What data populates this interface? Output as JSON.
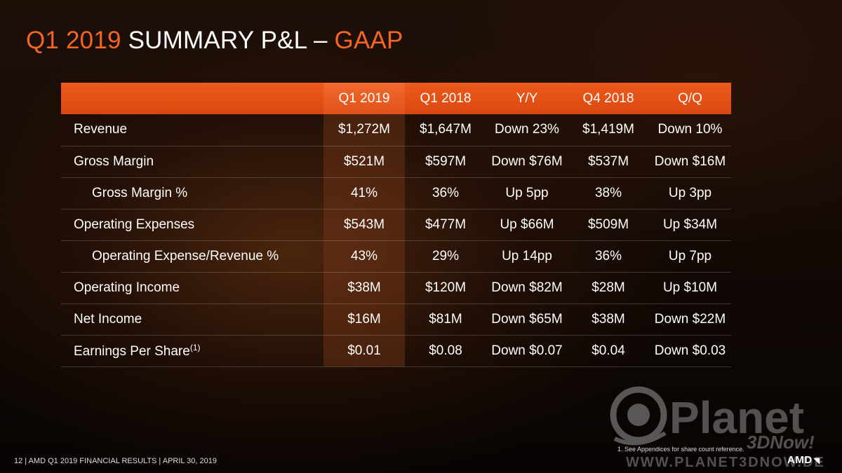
{
  "title": {
    "quarter": "Q1 2019",
    "main": " SUMMARY P&L – ",
    "suffix": "GAAP"
  },
  "table": {
    "headers": [
      "",
      "Q1 2019",
      "Q1 2018",
      "Y/Y",
      "Q4 2018",
      "Q/Q"
    ],
    "rows": [
      {
        "label": "Revenue",
        "values": [
          "$1,272M",
          "$1,647M",
          "Down 23%",
          "$1,419M",
          "Down 10%"
        ]
      },
      {
        "label": "Gross Margin",
        "values": [
          "$521M",
          "$597M",
          "Down $76M",
          "$537M",
          "Down $16M"
        ]
      },
      {
        "label": "Gross Margin %",
        "values": [
          "41%",
          "36%",
          "Up 5pp",
          "38%",
          "Up 3pp"
        ]
      },
      {
        "label": "Operating Expenses",
        "values": [
          "$543M",
          "$477M",
          "Up $66M",
          "$509M",
          "Up $34M"
        ]
      },
      {
        "label": "Operating Expense/Revenue %",
        "values": [
          "43%",
          "29%",
          "Up 14pp",
          "36%",
          "Up 7pp"
        ]
      },
      {
        "label": "Operating Income",
        "values": [
          "$38M",
          "$120M",
          "Down $82M",
          "$28M",
          "Up $10M"
        ]
      },
      {
        "label": "Net Income",
        "values": [
          "$16M",
          "$81M",
          "Down $65M",
          "$38M",
          "Down $22M"
        ]
      },
      {
        "label": "Earnings Per Share",
        "label_sup": "(1)",
        "values": [
          "$0.01",
          "$0.08",
          "Down $0.07",
          "$0.04",
          "Down $0.03"
        ]
      }
    ]
  },
  "footnote": "1.    See Appendices for  share count reference.",
  "footer": "12  |  AMD Q1 2019 FINANCIAL RESULTS | APRIL 30, 2019",
  "logo": "AMD",
  "watermark": {
    "brand": "Planet",
    "tagline": "3DNow!",
    "url": "WWW.PLANET3DNOW.DE"
  },
  "colors": {
    "accent": "#f26522",
    "header_bar": "#e0521a",
    "background": "#120905"
  }
}
